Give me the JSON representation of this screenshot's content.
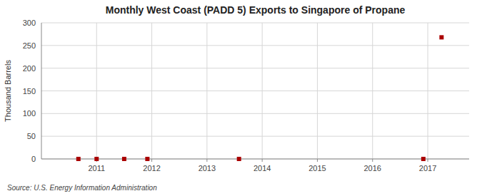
{
  "chart_data": {
    "type": "scatter",
    "title": "Monthly West Coast (PADD 5) Exports to Singapore of Propane",
    "ylabel": "Thousand Barrels",
    "source": "Source: U.S. Energy Information Administration",
    "x": [
      2010.67,
      2011.0,
      2011.5,
      2011.92,
      2013.58,
      2016.92,
      2017.25
    ],
    "values": [
      0,
      0,
      0,
      0,
      0,
      0,
      268
    ],
    "color": "#aa0000",
    "marker": "square",
    "xlim": [
      2010.0,
      2017.75
    ],
    "ylim": [
      0,
      300
    ],
    "xticks": [
      2011,
      2012,
      2013,
      2014,
      2015,
      2016,
      2017
    ],
    "yticks": [
      0,
      50,
      100,
      150,
      200,
      250,
      300
    ],
    "grid": true
  }
}
